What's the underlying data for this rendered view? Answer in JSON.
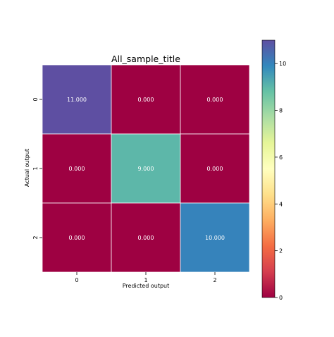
{
  "chart_data": {
    "type": "heatmap",
    "title": "All_sample_title",
    "xlabel": "Predicted output",
    "ylabel": "Actual output",
    "x_categories": [
      "0",
      "1",
      "2"
    ],
    "y_categories": [
      "0",
      "1",
      "2"
    ],
    "values": [
      [
        11,
        0,
        0
      ],
      [
        0,
        9,
        0
      ],
      [
        0,
        0,
        10
      ]
    ],
    "cell_labels": [
      [
        "11.000",
        "0.000",
        "0.000"
      ],
      [
        "0.000",
        "9.000",
        "0.000"
      ],
      [
        "0.000",
        "0.000",
        "10.000"
      ]
    ],
    "colorscale": "Spectral",
    "colorbar": {
      "range": [
        0,
        11
      ],
      "ticks": [
        "0",
        "2",
        "4",
        "6",
        "8",
        "10"
      ]
    },
    "cell_label_color": "#ffffff",
    "grid_line_color": "#ffffff"
  }
}
